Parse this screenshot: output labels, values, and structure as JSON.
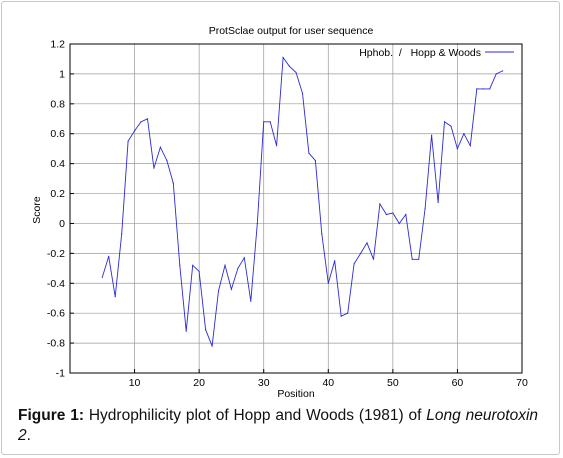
{
  "chart_data": {
    "type": "line",
    "title": "ProtSclae output for user sequence",
    "xlabel": "Position",
    "ylabel": "Score",
    "xlim": [
      0,
      70
    ],
    "ylim": [
      -1,
      1.2
    ],
    "xticks": [
      10,
      20,
      30,
      40,
      50,
      60,
      70
    ],
    "yticks": [
      1.2,
      1,
      0.8,
      0.6,
      0.4,
      0.2,
      0,
      -0.2,
      -0.4,
      -0.6,
      -0.8,
      -1
    ],
    "grid": true,
    "legend_position": "top-right",
    "colors": {
      "series": "#2b2bd4",
      "grid": "#9a9a9a",
      "axis": "#000000"
    },
    "series": [
      {
        "name": "Hphob.  /   Hopp & Woods",
        "x": [
          5,
          6,
          7,
          8,
          9,
          10,
          11,
          12,
          13,
          14,
          15,
          16,
          17,
          18,
          19,
          20,
          21,
          22,
          23,
          24,
          25,
          26,
          27,
          28,
          29,
          30,
          31,
          32,
          33,
          34,
          35,
          36,
          37,
          38,
          39,
          40,
          41,
          42,
          43,
          44,
          45,
          46,
          47,
          48,
          49,
          50,
          51,
          52,
          53,
          54,
          55,
          56,
          57,
          58,
          59,
          60,
          61,
          62,
          63,
          64,
          65,
          66,
          67
        ],
        "y": [
          -0.36,
          -0.22,
          -0.49,
          -0.07,
          0.55,
          0.62,
          0.68,
          0.7,
          0.37,
          0.51,
          0.42,
          0.27,
          -0.28,
          -0.72,
          -0.28,
          -0.32,
          -0.71,
          -0.82,
          -0.45,
          -0.28,
          -0.44,
          -0.3,
          -0.23,
          -0.52,
          0.0,
          0.68,
          0.68,
          0.52,
          1.11,
          1.05,
          1.01,
          0.87,
          0.47,
          0.42,
          -0.07,
          -0.4,
          -0.25,
          -0.62,
          -0.6,
          -0.27,
          -0.2,
          -0.13,
          -0.24,
          0.13,
          0.06,
          0.07,
          0.0,
          0.06,
          -0.24,
          -0.24,
          0.1,
          0.59,
          0.14,
          0.68,
          0.65,
          0.5,
          0.6,
          0.52,
          0.9,
          0.9,
          0.9,
          1.0,
          1.02
        ]
      }
    ]
  },
  "caption": {
    "label": "Figure 1:",
    "text": " Hydrophilicity plot of Hopp and Woods (1981)  of ",
    "italic": "Long neurotoxin 2",
    "end": "."
  }
}
